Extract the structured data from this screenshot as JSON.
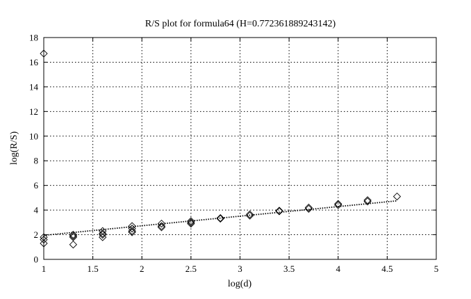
{
  "chart_data": {
    "type": "scatter",
    "title": "R/S plot for formula64 (H=0.772361889243142)",
    "xlabel": "log(d)",
    "ylabel": "log(R/S)",
    "xlim": [
      1,
      5
    ],
    "ylim": [
      0,
      18
    ],
    "xticks": [
      1,
      1.5,
      2,
      2.5,
      3,
      3.5,
      4,
      4.5,
      5
    ],
    "yticks": [
      0,
      2,
      4,
      6,
      8,
      10,
      12,
      14,
      16,
      18
    ],
    "xtick_labels": [
      "1",
      "1.5",
      "2",
      "2.5",
      "3",
      "3.5",
      "4",
      "4.5",
      "5"
    ],
    "ytick_labels": [
      "0",
      "2",
      "4",
      "6",
      "8",
      "10",
      "12",
      "14",
      "16",
      "18"
    ],
    "grid": true,
    "marker": "diamond",
    "points": [
      {
        "x": 1.0,
        "y": 16.7
      },
      {
        "x": 1.0,
        "y": 1.8
      },
      {
        "x": 1.0,
        "y": 1.6
      },
      {
        "x": 1.0,
        "y": 1.3
      },
      {
        "x": 1.3,
        "y": 2.0
      },
      {
        "x": 1.3,
        "y": 1.9
      },
      {
        "x": 1.3,
        "y": 1.8
      },
      {
        "x": 1.3,
        "y": 1.2
      },
      {
        "x": 1.6,
        "y": 2.3
      },
      {
        "x": 1.6,
        "y": 2.1
      },
      {
        "x": 1.6,
        "y": 2.0
      },
      {
        "x": 1.6,
        "y": 1.8
      },
      {
        "x": 1.9,
        "y": 2.7
      },
      {
        "x": 1.9,
        "y": 2.5
      },
      {
        "x": 1.9,
        "y": 2.3
      },
      {
        "x": 1.9,
        "y": 2.2
      },
      {
        "x": 2.2,
        "y": 2.9
      },
      {
        "x": 2.2,
        "y": 2.7
      },
      {
        "x": 2.2,
        "y": 2.6
      },
      {
        "x": 2.5,
        "y": 3.1
      },
      {
        "x": 2.5,
        "y": 3.0
      },
      {
        "x": 2.5,
        "y": 2.9
      },
      {
        "x": 2.8,
        "y": 3.35
      },
      {
        "x": 2.8,
        "y": 3.3
      },
      {
        "x": 3.1,
        "y": 3.65
      },
      {
        "x": 3.1,
        "y": 3.55
      },
      {
        "x": 3.4,
        "y": 3.95
      },
      {
        "x": 3.4,
        "y": 3.9
      },
      {
        "x": 3.7,
        "y": 4.2
      },
      {
        "x": 3.7,
        "y": 4.1
      },
      {
        "x": 4.0,
        "y": 4.5
      },
      {
        "x": 4.0,
        "y": 4.4
      },
      {
        "x": 4.3,
        "y": 4.8
      },
      {
        "x": 4.3,
        "y": 4.7
      },
      {
        "x": 4.6,
        "y": 5.1
      }
    ],
    "fit_line": {
      "x": [
        1.0,
        4.6
      ],
      "y": [
        1.95,
        4.75
      ],
      "style": "dotted"
    }
  }
}
